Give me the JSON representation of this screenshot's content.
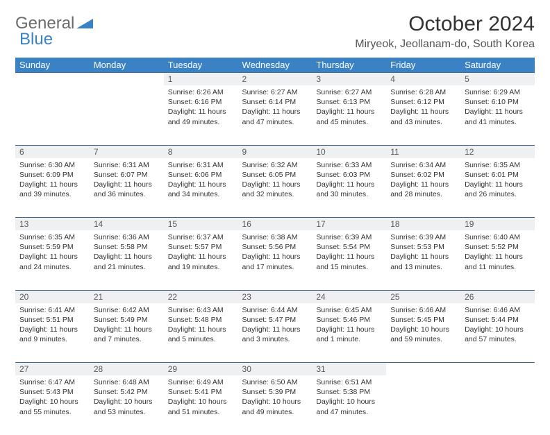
{
  "logo": {
    "text1": "General",
    "text2": "Blue"
  },
  "title": "October 2024",
  "location": "Miryeok, Jeollanam-do, South Korea",
  "headers": [
    "Sunday",
    "Monday",
    "Tuesday",
    "Wednesday",
    "Thursday",
    "Friday",
    "Saturday"
  ],
  "colors": {
    "header_bg": "#3b82c4",
    "header_text": "#ffffff",
    "daynum_bg": "#eef0f1",
    "daynum_border": "#3b6a9a",
    "text": "#333333",
    "logo_gray": "#6b6b6b",
    "logo_blue": "#3b82c4"
  },
  "weeks": [
    {
      "nums": [
        "",
        "",
        "1",
        "2",
        "3",
        "4",
        "5"
      ],
      "cells": [
        {
          "empty": true
        },
        {
          "empty": true
        },
        {
          "sunrise": "Sunrise: 6:26 AM",
          "sunset": "Sunset: 6:16 PM",
          "daylight": "Daylight: 11 hours and 49 minutes."
        },
        {
          "sunrise": "Sunrise: 6:27 AM",
          "sunset": "Sunset: 6:14 PM",
          "daylight": "Daylight: 11 hours and 47 minutes."
        },
        {
          "sunrise": "Sunrise: 6:27 AM",
          "sunset": "Sunset: 6:13 PM",
          "daylight": "Daylight: 11 hours and 45 minutes."
        },
        {
          "sunrise": "Sunrise: 6:28 AM",
          "sunset": "Sunset: 6:12 PM",
          "daylight": "Daylight: 11 hours and 43 minutes."
        },
        {
          "sunrise": "Sunrise: 6:29 AM",
          "sunset": "Sunset: 6:10 PM",
          "daylight": "Daylight: 11 hours and 41 minutes."
        }
      ]
    },
    {
      "nums": [
        "6",
        "7",
        "8",
        "9",
        "10",
        "11",
        "12"
      ],
      "cells": [
        {
          "sunrise": "Sunrise: 6:30 AM",
          "sunset": "Sunset: 6:09 PM",
          "daylight": "Daylight: 11 hours and 39 minutes."
        },
        {
          "sunrise": "Sunrise: 6:31 AM",
          "sunset": "Sunset: 6:07 PM",
          "daylight": "Daylight: 11 hours and 36 minutes."
        },
        {
          "sunrise": "Sunrise: 6:31 AM",
          "sunset": "Sunset: 6:06 PM",
          "daylight": "Daylight: 11 hours and 34 minutes."
        },
        {
          "sunrise": "Sunrise: 6:32 AM",
          "sunset": "Sunset: 6:05 PM",
          "daylight": "Daylight: 11 hours and 32 minutes."
        },
        {
          "sunrise": "Sunrise: 6:33 AM",
          "sunset": "Sunset: 6:03 PM",
          "daylight": "Daylight: 11 hours and 30 minutes."
        },
        {
          "sunrise": "Sunrise: 6:34 AM",
          "sunset": "Sunset: 6:02 PM",
          "daylight": "Daylight: 11 hours and 28 minutes."
        },
        {
          "sunrise": "Sunrise: 6:35 AM",
          "sunset": "Sunset: 6:01 PM",
          "daylight": "Daylight: 11 hours and 26 minutes."
        }
      ]
    },
    {
      "nums": [
        "13",
        "14",
        "15",
        "16",
        "17",
        "18",
        "19"
      ],
      "cells": [
        {
          "sunrise": "Sunrise: 6:35 AM",
          "sunset": "Sunset: 5:59 PM",
          "daylight": "Daylight: 11 hours and 24 minutes."
        },
        {
          "sunrise": "Sunrise: 6:36 AM",
          "sunset": "Sunset: 5:58 PM",
          "daylight": "Daylight: 11 hours and 21 minutes."
        },
        {
          "sunrise": "Sunrise: 6:37 AM",
          "sunset": "Sunset: 5:57 PM",
          "daylight": "Daylight: 11 hours and 19 minutes."
        },
        {
          "sunrise": "Sunrise: 6:38 AM",
          "sunset": "Sunset: 5:56 PM",
          "daylight": "Daylight: 11 hours and 17 minutes."
        },
        {
          "sunrise": "Sunrise: 6:39 AM",
          "sunset": "Sunset: 5:54 PM",
          "daylight": "Daylight: 11 hours and 15 minutes."
        },
        {
          "sunrise": "Sunrise: 6:39 AM",
          "sunset": "Sunset: 5:53 PM",
          "daylight": "Daylight: 11 hours and 13 minutes."
        },
        {
          "sunrise": "Sunrise: 6:40 AM",
          "sunset": "Sunset: 5:52 PM",
          "daylight": "Daylight: 11 hours and 11 minutes."
        }
      ]
    },
    {
      "nums": [
        "20",
        "21",
        "22",
        "23",
        "24",
        "25",
        "26"
      ],
      "cells": [
        {
          "sunrise": "Sunrise: 6:41 AM",
          "sunset": "Sunset: 5:51 PM",
          "daylight": "Daylight: 11 hours and 9 minutes."
        },
        {
          "sunrise": "Sunrise: 6:42 AM",
          "sunset": "Sunset: 5:49 PM",
          "daylight": "Daylight: 11 hours and 7 minutes."
        },
        {
          "sunrise": "Sunrise: 6:43 AM",
          "sunset": "Sunset: 5:48 PM",
          "daylight": "Daylight: 11 hours and 5 minutes."
        },
        {
          "sunrise": "Sunrise: 6:44 AM",
          "sunset": "Sunset: 5:47 PM",
          "daylight": "Daylight: 11 hours and 3 minutes."
        },
        {
          "sunrise": "Sunrise: 6:45 AM",
          "sunset": "Sunset: 5:46 PM",
          "daylight": "Daylight: 11 hours and 1 minute."
        },
        {
          "sunrise": "Sunrise: 6:46 AM",
          "sunset": "Sunset: 5:45 PM",
          "daylight": "Daylight: 10 hours and 59 minutes."
        },
        {
          "sunrise": "Sunrise: 6:46 AM",
          "sunset": "Sunset: 5:44 PM",
          "daylight": "Daylight: 10 hours and 57 minutes."
        }
      ]
    },
    {
      "nums": [
        "27",
        "28",
        "29",
        "30",
        "31",
        "",
        ""
      ],
      "cells": [
        {
          "sunrise": "Sunrise: 6:47 AM",
          "sunset": "Sunset: 5:43 PM",
          "daylight": "Daylight: 10 hours and 55 minutes."
        },
        {
          "sunrise": "Sunrise: 6:48 AM",
          "sunset": "Sunset: 5:42 PM",
          "daylight": "Daylight: 10 hours and 53 minutes."
        },
        {
          "sunrise": "Sunrise: 6:49 AM",
          "sunset": "Sunset: 5:41 PM",
          "daylight": "Daylight: 10 hours and 51 minutes."
        },
        {
          "sunrise": "Sunrise: 6:50 AM",
          "sunset": "Sunset: 5:39 PM",
          "daylight": "Daylight: 10 hours and 49 minutes."
        },
        {
          "sunrise": "Sunrise: 6:51 AM",
          "sunset": "Sunset: 5:38 PM",
          "daylight": "Daylight: 10 hours and 47 minutes."
        },
        {
          "empty": true
        },
        {
          "empty": true
        }
      ]
    }
  ]
}
